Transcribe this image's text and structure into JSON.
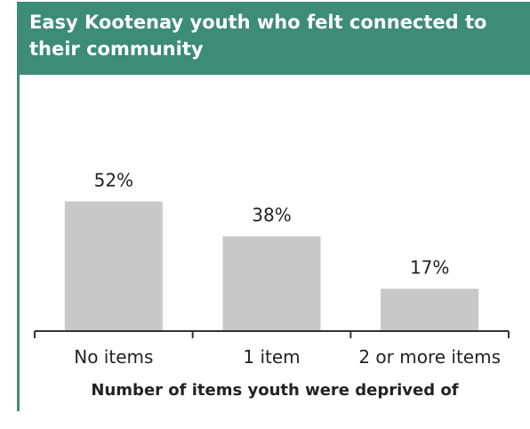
{
  "header": {
    "title": "Easy Kootenay youth who felt connected to their community"
  },
  "chart_data": {
    "type": "bar",
    "title": "Easy Kootenay youth who felt connected to their community",
    "xlabel": "Number of items youth were deprived of",
    "ylabel": "",
    "categories": [
      "No items",
      "1 item",
      "2 or more items"
    ],
    "values": [
      52,
      38,
      17
    ],
    "value_labels": [
      "52%",
      "38%",
      "17%"
    ],
    "unit": "%",
    "ylim": [
      0,
      100
    ],
    "grid": false,
    "legend": "none",
    "bar_color": "#c8c8c8"
  },
  "colors": {
    "accent": "#3d8c75"
  }
}
